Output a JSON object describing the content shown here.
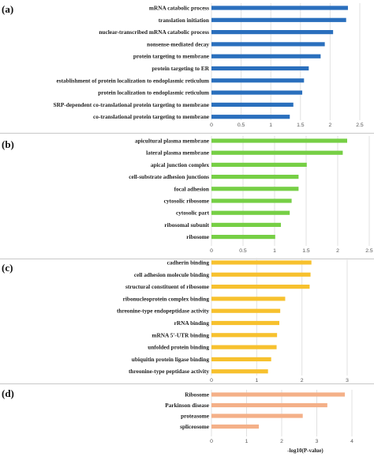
{
  "chart_data": [
    {
      "type": "bar",
      "orientation": "horizontal",
      "panel_label": "(a)",
      "color": "#2a6fbd",
      "categories": [
        "mRNA catabolic process",
        "translation initiation",
        "nuclear-transcribed mRNA catabolic process",
        "nonsense-mediated decay",
        "protein targeting to membrane",
        "protein targeting to ER",
        "establishment of protein localization to endoplasmic reticulum",
        "protein localization to endoplasmic reticulum",
        "SRP-dependent co-translational protein targeting to membrane",
        "co-translational protein targeting to membrane"
      ],
      "values": [
        2.3,
        2.27,
        2.05,
        1.91,
        1.84,
        1.64,
        1.56,
        1.53,
        1.38,
        1.32
      ],
      "xticks": [
        "0",
        "0.5",
        "1",
        "1.5",
        "2",
        "2.5"
      ],
      "xlim": [
        0,
        2.5
      ],
      "xlabel": ""
    },
    {
      "type": "bar",
      "orientation": "horizontal",
      "panel_label": "(b)",
      "color": "#76cf45",
      "categories": [
        "apicultural plasma membrane",
        "lateral plasma membrane",
        "apical junction complex",
        "cell-substrate adhesion junctions",
        "focal adhesion",
        "cytosolic ribosome",
        "cytosolic part",
        "ribosomal subunit",
        "ribosome"
      ],
      "values": [
        2.15,
        2.08,
        1.51,
        1.38,
        1.38,
        1.27,
        1.24,
        1.1,
        1.01
      ],
      "xticks": [
        "0",
        "0.5",
        "1",
        "1.5",
        "2",
        "2.5"
      ],
      "xlim": [
        0,
        2.5
      ],
      "xlabel": ""
    },
    {
      "type": "bar",
      "orientation": "horizontal",
      "panel_label": "(c)",
      "color": "#f7c12e",
      "categories": [
        "cadherin binding",
        "cell adhesion molecule binding",
        "structural constituent of ribosome",
        "ribonucleoprotein complex binding",
        "threonine-type endopeptidase activity",
        "rRNA binding",
        "mRNA 5'-UTR binding",
        "unfolded protein binding",
        "ubiquitin protein ligase binding",
        "threonine-type peptidase activity"
      ],
      "values": [
        2.21,
        2.19,
        2.17,
        1.63,
        1.52,
        1.5,
        1.45,
        1.44,
        1.32,
        1.25
      ],
      "xticks": [
        "0",
        "1",
        "2",
        "3"
      ],
      "xlim": [
        0,
        3
      ],
      "xlabel": ""
    },
    {
      "type": "bar",
      "orientation": "horizontal",
      "panel_label": "(d)",
      "color": "#f4b088",
      "categories": [
        "Ribosome",
        "Parkinson disease",
        "proteasome",
        "spliceosome"
      ],
      "values": [
        3.8,
        3.3,
        2.6,
        1.35
      ],
      "xticks": [
        "0",
        "1",
        "2",
        "3",
        "4"
      ],
      "xlim": [
        0,
        4
      ],
      "xlabel": "-log10(P-value)"
    }
  ]
}
